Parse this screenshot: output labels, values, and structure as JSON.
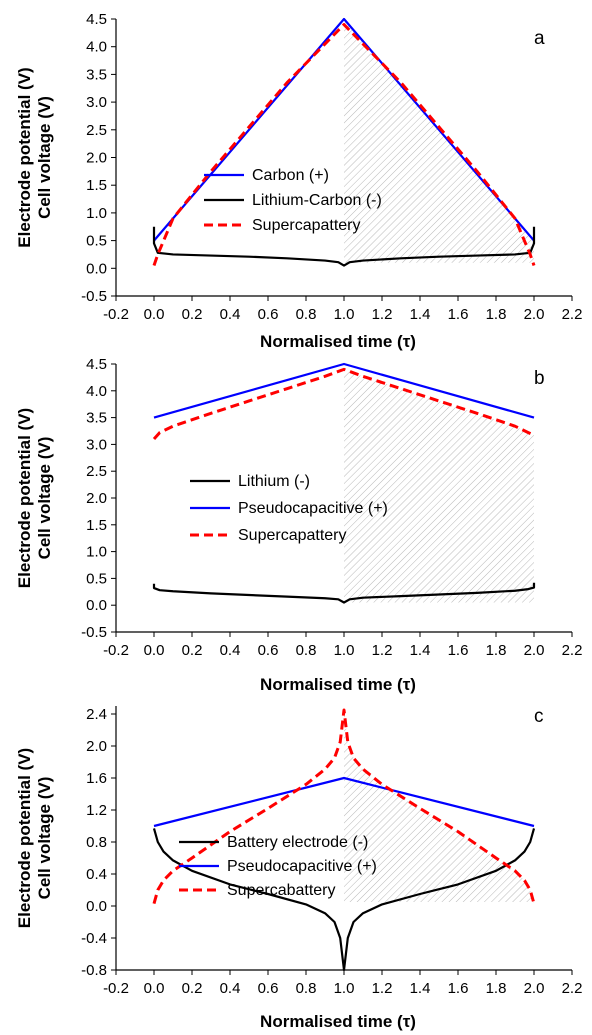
{
  "chart_data": [
    {
      "type": "line",
      "panel_label": "a",
      "xlabel": "Normalised time (τ)",
      "ylabel_line1": "Electrode potential (V)",
      "ylabel_line2": "Cell voltage (V)",
      "xlim": [
        -0.2,
        2.2
      ],
      "ylim": [
        -0.5,
        4.5
      ],
      "xticks": [
        "-0.2",
        "0.0",
        "0.2",
        "0.4",
        "0.6",
        "0.8",
        "1.0",
        "1.2",
        "1.4",
        "1.6",
        "1.8",
        "2.0",
        "2.2"
      ],
      "yticks": [
        "-0.5",
        "0.0",
        "0.5",
        "1.0",
        "1.5",
        "2.0",
        "2.5",
        "3.0",
        "3.5",
        "4.0",
        "4.5"
      ],
      "shaded_region": {
        "x": [
          1.0,
          2.0
        ],
        "y_top_series": "Carbon (+)",
        "y_bottom": 0.1,
        "pattern": "diagonal hatch"
      },
      "legend_placement": "center",
      "series": [
        {
          "name": "Carbon (+)",
          "color": "#0000ff",
          "style": "solid",
          "x": [
            0.0,
            1.0,
            2.0
          ],
          "y": [
            0.5,
            4.5,
            0.5
          ]
        },
        {
          "name": "Lithium-Carbon (-)",
          "color": "#000000",
          "style": "solid",
          "x": [
            0.0,
            0.0,
            0.02,
            0.1,
            0.3,
            0.5,
            0.7,
            0.9,
            0.97,
            1.0,
            1.03,
            1.1,
            1.3,
            1.5,
            1.7,
            1.9,
            1.98,
            2.0,
            2.0
          ],
          "y": [
            0.75,
            0.45,
            0.28,
            0.25,
            0.23,
            0.21,
            0.18,
            0.14,
            0.11,
            0.05,
            0.11,
            0.14,
            0.18,
            0.21,
            0.23,
            0.25,
            0.28,
            0.45,
            0.75
          ]
        },
        {
          "name": "Supercapattery",
          "color": "#ff0000",
          "style": "dashed",
          "x": [
            0.0,
            0.02,
            0.1,
            0.3,
            0.5,
            0.7,
            0.9,
            1.0,
            1.1,
            1.3,
            1.5,
            1.7,
            1.9,
            1.98,
            2.0
          ],
          "y": [
            0.05,
            0.25,
            0.9,
            1.75,
            2.55,
            3.35,
            4.05,
            4.4,
            4.05,
            3.35,
            2.55,
            1.75,
            0.9,
            0.25,
            0.05
          ]
        }
      ]
    },
    {
      "type": "line",
      "panel_label": "b",
      "xlabel": "Normalised time (τ)",
      "ylabel_line1": "Electrode potential (V)",
      "ylabel_line2": "Cell voltage (V)",
      "xlim": [
        -0.2,
        2.2
      ],
      "ylim": [
        -0.5,
        4.5
      ],
      "xticks": [
        "-0.2",
        "0.0",
        "0.2",
        "0.4",
        "0.6",
        "0.8",
        "1.0",
        "1.2",
        "1.4",
        "1.6",
        "1.8",
        "2.0",
        "2.2"
      ],
      "yticks": [
        "-0.5",
        "0.0",
        "0.5",
        "1.0",
        "1.5",
        "2.0",
        "2.5",
        "3.0",
        "3.5",
        "4.0",
        "4.5"
      ],
      "shaded_region": {
        "x": [
          1.0,
          2.0
        ],
        "y_top_series": "Supercapattery",
        "y_bottom": 0.05,
        "pattern": "diagonal hatch"
      },
      "legend_placement": "center",
      "series": [
        {
          "name": "Lithium (-)",
          "color": "#000000",
          "style": "solid",
          "x": [
            0.0,
            0.0,
            0.03,
            0.1,
            0.3,
            0.5,
            0.7,
            0.9,
            0.97,
            1.0,
            1.03,
            1.1,
            1.3,
            1.5,
            1.7,
            1.9,
            1.97,
            2.0,
            2.0
          ],
          "y": [
            0.4,
            0.32,
            0.28,
            0.26,
            0.22,
            0.19,
            0.16,
            0.13,
            0.11,
            0.05,
            0.11,
            0.14,
            0.17,
            0.2,
            0.23,
            0.27,
            0.3,
            0.33,
            0.42
          ]
        },
        {
          "name": "Pseudocapacitive (+)",
          "color": "#0000ff",
          "style": "solid",
          "x": [
            0.0,
            1.0,
            2.0
          ],
          "y": [
            3.5,
            4.5,
            3.5
          ]
        },
        {
          "name": "Supercapattery",
          "color": "#ff0000",
          "style": "dashed",
          "x": [
            0.0,
            0.03,
            0.1,
            0.3,
            0.5,
            0.7,
            0.9,
            1.0,
            1.1,
            1.3,
            1.5,
            1.7,
            1.9,
            1.97,
            2.0
          ],
          "y": [
            3.1,
            3.22,
            3.34,
            3.58,
            3.81,
            4.04,
            4.27,
            4.4,
            4.27,
            4.04,
            3.81,
            3.58,
            3.34,
            3.22,
            3.17
          ]
        }
      ]
    },
    {
      "type": "line",
      "panel_label": "c",
      "xlabel": "Normalised time (τ)",
      "ylabel_line1": "Electrode potential (V)",
      "ylabel_line2": "Cell voltage (V)",
      "xlim": [
        -0.2,
        2.2
      ],
      "ylim": [
        -0.8,
        2.5
      ],
      "xticks": [
        "-0.2",
        "0.0",
        "0.2",
        "0.4",
        "0.6",
        "0.8",
        "1.0",
        "1.2",
        "1.4",
        "1.6",
        "1.8",
        "2.0",
        "2.2"
      ],
      "yticks": [
        "-0.8",
        "-0.4",
        "0.0",
        "0.4",
        "0.8",
        "1.2",
        "1.6",
        "2.0",
        "2.4"
      ],
      "shaded_region": {
        "x": [
          1.0,
          2.0
        ],
        "y_top_series": "Supercabattery",
        "y_bottom": 0.05,
        "pattern": "diagonal hatch"
      },
      "legend_placement": "bottom-center",
      "series": [
        {
          "name": "Battery electrode (-)",
          "color": "#000000",
          "style": "solid",
          "x": [
            0.0,
            0.02,
            0.05,
            0.1,
            0.2,
            0.4,
            0.6,
            0.8,
            0.9,
            0.95,
            0.98,
            1.0,
            1.02,
            1.05,
            1.1,
            1.2,
            1.4,
            1.6,
            1.8,
            1.9,
            1.95,
            1.98,
            2.0
          ],
          "y": [
            0.97,
            0.8,
            0.68,
            0.57,
            0.44,
            0.27,
            0.15,
            0.02,
            -0.09,
            -0.2,
            -0.4,
            -0.8,
            -0.4,
            -0.2,
            -0.09,
            0.02,
            0.15,
            0.27,
            0.44,
            0.57,
            0.68,
            0.8,
            0.97
          ]
        },
        {
          "name": "Pseudocapacitive (+)",
          "color": "#0000ff",
          "style": "solid",
          "x": [
            0.0,
            1.0,
            2.0
          ],
          "y": [
            1.0,
            1.6,
            1.0
          ]
        },
        {
          "name": "Supercabattery",
          "color": "#ff0000",
          "style": "dashed",
          "x": [
            0.0,
            0.02,
            0.05,
            0.1,
            0.2,
            0.4,
            0.6,
            0.8,
            0.9,
            0.95,
            0.98,
            1.0,
            1.02,
            1.05,
            1.1,
            1.2,
            1.4,
            1.6,
            1.8,
            1.9,
            1.95,
            1.98,
            2.0
          ],
          "y": [
            0.03,
            0.2,
            0.32,
            0.44,
            0.6,
            0.93,
            1.22,
            1.52,
            1.71,
            1.85,
            2.05,
            2.45,
            2.05,
            1.85,
            1.71,
            1.52,
            1.22,
            0.93,
            0.6,
            0.44,
            0.32,
            0.2,
            0.03
          ]
        }
      ]
    }
  ]
}
